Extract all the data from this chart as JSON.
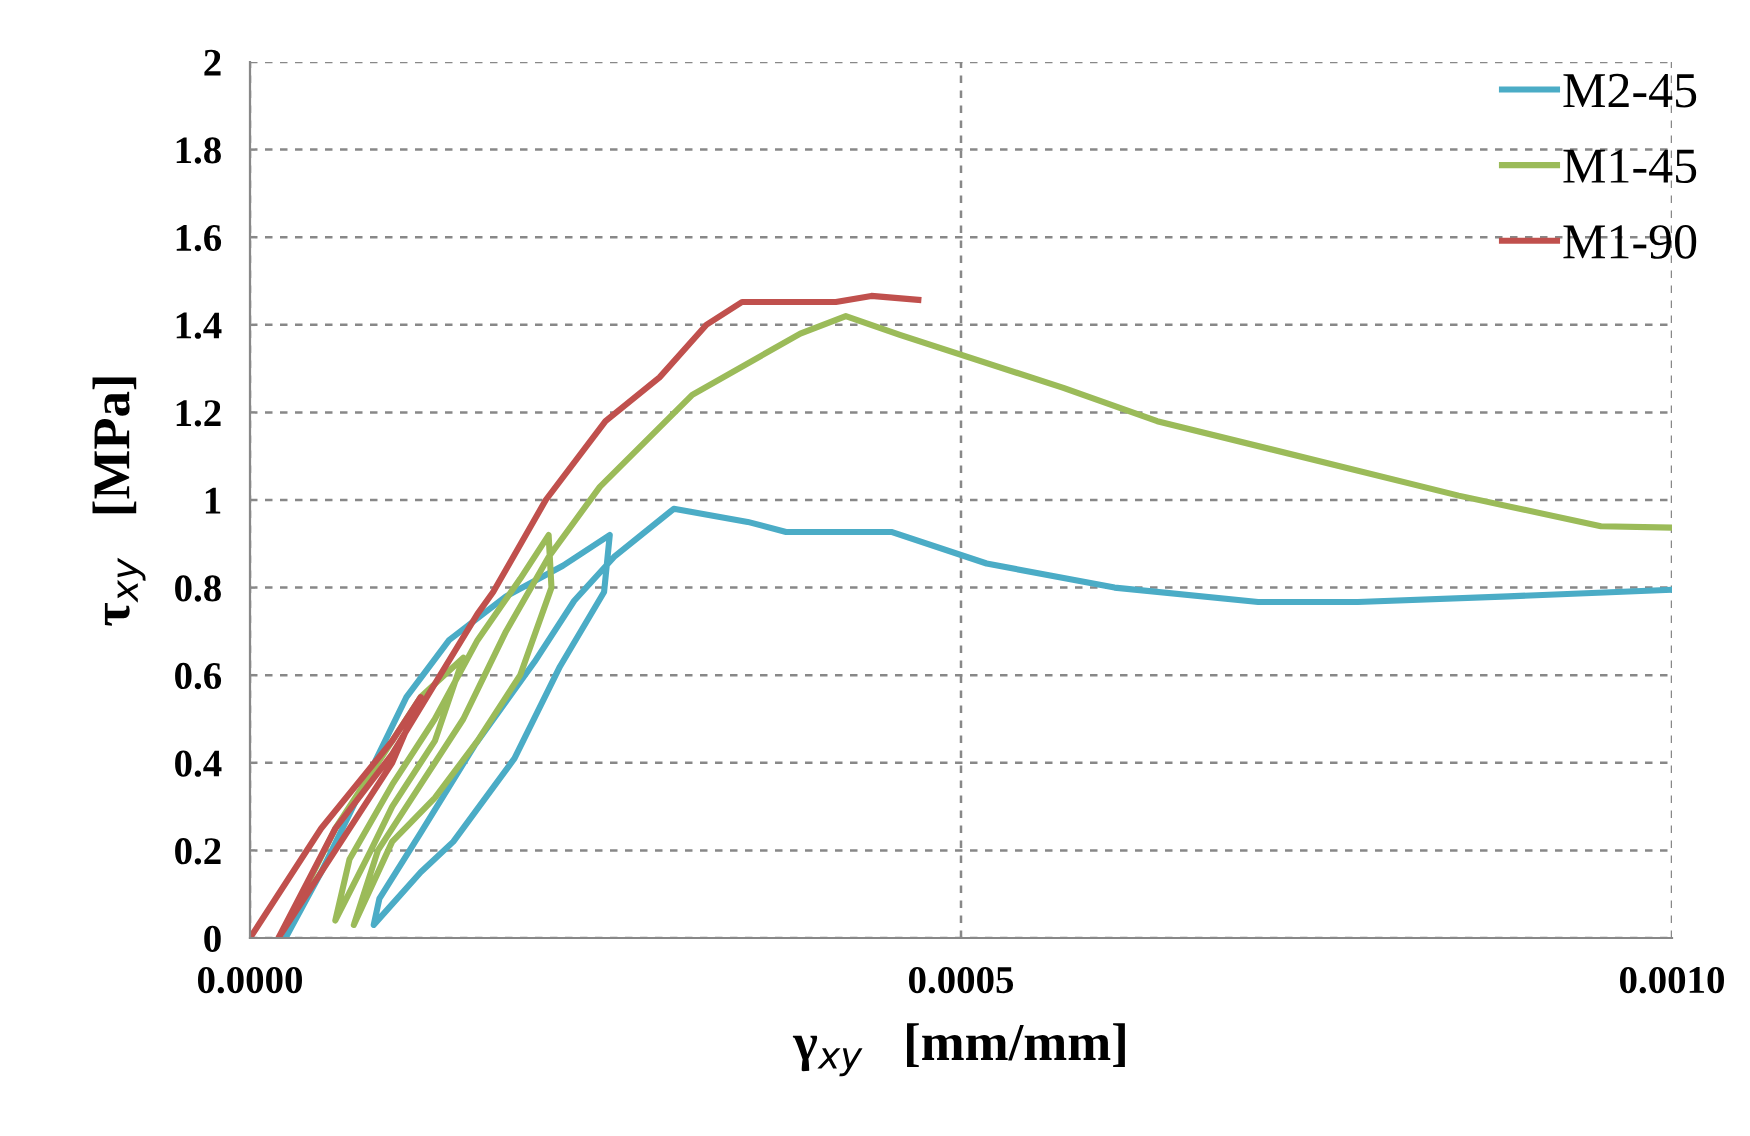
{
  "chart_data": {
    "type": "line",
    "xlabel": "γ$_{xy}$   [mm/mm]",
    "ylabel": "τ$_{xy}$   [MPa]",
    "xlim": [
      0,
      0.001
    ],
    "ylim": [
      0,
      2
    ],
    "xticks": [
      {
        "value": 0,
        "label": "0.0000"
      },
      {
        "value": 0.0005,
        "label": "0.0005"
      },
      {
        "value": 0.001,
        "label": "0.0010"
      }
    ],
    "yticks": [
      0,
      0.2,
      0.4,
      0.6,
      0.8,
      1,
      1.2,
      1.4,
      1.6,
      1.8,
      2
    ],
    "grid": true,
    "legend": "top right",
    "marker": "none",
    "line_style": "solid",
    "series": [
      {
        "name": "M2-45",
        "color": "#4bacc6",
        "x": [
          2.5e-05,
          5e-05,
          0.00011,
          0.00014,
          0.00018,
          0.00022,
          0.000253,
          0.000249,
          0.000218,
          0.000186,
          0.000143,
          0.00012,
          8.7e-05,
          9.1e-05,
          0.00012,
          0.000158,
          0.0002,
          0.000228,
          0.000256,
          0.000298,
          0.00035,
          0.000377,
          0.000451,
          0.000518,
          0.000608,
          0.000709,
          0.000779,
          0.000885,
          0.001
        ],
        "values": [
          0,
          0.15,
          0.55,
          0.68,
          0.78,
          0.85,
          0.92,
          0.79,
          0.62,
          0.41,
          0.22,
          0.15,
          0.03,
          0.09,
          0.24,
          0.44,
          0.63,
          0.77,
          0.87,
          0.98,
          0.95,
          0.927,
          0.927,
          0.855,
          0.8,
          0.767,
          0.767,
          0.78,
          0.795
        ]
      },
      {
        "name": "M1-45",
        "color": "#9bbb59",
        "x": [
          4e-05,
          6e-05,
          9e-05,
          0.00012,
          0.00015,
          0.00013,
          0.0001,
          8.5e-05,
          6e-05,
          7e-05,
          0.0001,
          0.00013,
          0.00016,
          0.00019,
          0.00021,
          0.000212,
          0.00019,
          0.00016,
          0.00013,
          0.0001,
          7.3e-05,
          9e-05,
          0.00012,
          0.00015,
          0.00018,
          0.00021,
          0.000246,
          0.000311,
          0.000387,
          0.000419,
          0.000457,
          0.000572,
          0.000638,
          0.00085,
          0.00095,
          0.001
        ],
        "values": [
          0.12,
          0.25,
          0.4,
          0.55,
          0.64,
          0.45,
          0.3,
          0.2,
          0.04,
          0.18,
          0.35,
          0.5,
          0.68,
          0.82,
          0.92,
          0.8,
          0.6,
          0.45,
          0.32,
          0.22,
          0.03,
          0.2,
          0.35,
          0.5,
          0.7,
          0.87,
          1.03,
          1.24,
          1.38,
          1.42,
          1.377,
          1.256,
          1.18,
          1.01,
          0.94,
          0.937
        ]
      },
      {
        "name": "M1-90",
        "color": "#c0504d",
        "x": [
          0,
          5e-05,
          0.0001,
          0.00012,
          0.0001,
          5e-05,
          2e-05,
          6e-05,
          0.0001,
          0.00013,
          0.00016,
          0.000171,
          0.000208,
          0.00025,
          0.000288,
          0.000321,
          0.000346,
          0.000412,
          0.000437,
          0.00047
        ],
        "values": [
          0,
          0.25,
          0.45,
          0.55,
          0.4,
          0.15,
          0,
          0.25,
          0.42,
          0.58,
          0.74,
          0.79,
          1.0,
          1.18,
          1.28,
          1.4,
          1.452,
          1.452,
          1.466,
          1.457
        ]
      }
    ]
  }
}
